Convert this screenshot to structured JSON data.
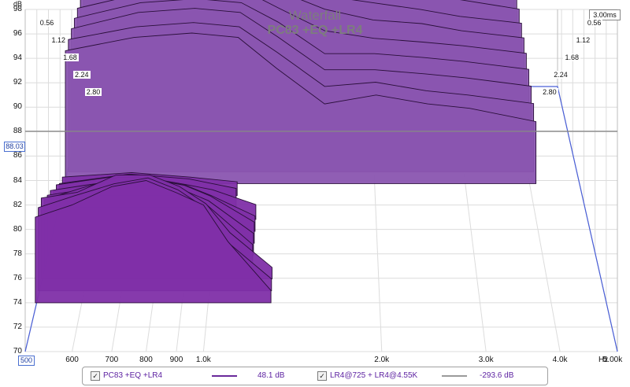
{
  "chart_data": {
    "type": "waterfall",
    "title": "Waterfall",
    "subtitle": "PC83 +EQ +LR4",
    "ylabel": "dB",
    "xlabel": "Hz",
    "ylim": [
      70,
      98
    ],
    "xlim": [
      500,
      5000
    ],
    "x_scale": "log",
    "y_ticks": [
      "98",
      "96",
      "94",
      "92",
      "90",
      "88",
      "86",
      "84",
      "82",
      "80",
      "78",
      "76",
      "74",
      "72",
      "70"
    ],
    "x_ticks": [
      {
        "label": "500",
        "hz": 500
      },
      {
        "label": "600",
        "hz": 600
      },
      {
        "label": "700",
        "hz": 700
      },
      {
        "label": "800",
        "hz": 800
      },
      {
        "label": "900",
        "hz": 900
      },
      {
        "label": "1.0k",
        "hz": 1000
      },
      {
        "label": "2.0k",
        "hz": 2000
      },
      {
        "label": "3.0k",
        "hz": 3000
      },
      {
        "label": "4.0k",
        "hz": 4000
      },
      {
        "label": "5.00k",
        "hz": 5000
      }
    ],
    "time_axis_label": "ms",
    "time_ticks": [
      "0.56",
      "1.12",
      "1.68",
      "2.24",
      "2.80"
    ],
    "time_max": "3.00ms",
    "cursor_db": "88.03",
    "cursor_hz": "500",
    "grid": true,
    "colors": {
      "fill": "#7f2fa8",
      "fill_back": "#8a55b0",
      "edge": "#2a0f3a",
      "grid": "#dcdcdc",
      "floor_frame": "#4a5fd8",
      "cursor": "#888888"
    },
    "slice_count": 20,
    "slices": [
      {
        "time_ms": 0.0,
        "points": [
          [
            520,
            81
          ],
          [
            600,
            82
          ],
          [
            700,
            83.5
          ],
          [
            800,
            84
          ],
          [
            900,
            83
          ],
          [
            1000,
            82
          ],
          [
            1100,
            79
          ],
          [
            1300,
            75
          ]
        ]
      },
      {
        "time_ms": 0.15,
        "points": [
          [
            520,
            81
          ],
          [
            600,
            82
          ],
          [
            700,
            83
          ],
          [
            800,
            83.5
          ],
          [
            900,
            82.5
          ],
          [
            1000,
            81
          ],
          [
            1100,
            78
          ],
          [
            1300,
            75
          ]
        ]
      },
      {
        "time_ms": 0.3,
        "points": [
          [
            520,
            81
          ],
          [
            600,
            81.5
          ],
          [
            700,
            83
          ],
          [
            800,
            83
          ],
          [
            900,
            82
          ],
          [
            1000,
            80.5
          ],
          [
            1100,
            78
          ],
          [
            1300,
            75
          ]
        ]
      },
      {
        "time_ms": 0.45,
        "points": [
          [
            520,
            80
          ],
          [
            600,
            81
          ],
          [
            700,
            82
          ],
          [
            800,
            82
          ],
          [
            900,
            81
          ],
          [
            1000,
            79.5
          ],
          [
            1200,
            76
          ]
        ]
      },
      {
        "time_ms": 0.6,
        "points": [
          [
            520,
            79.5
          ],
          [
            600,
            80
          ],
          [
            700,
            81
          ],
          [
            800,
            81
          ],
          [
            900,
            80
          ],
          [
            1000,
            79
          ],
          [
            1200,
            76
          ]
        ]
      },
      {
        "time_ms": 0.75,
        "points": [
          [
            520,
            79
          ],
          [
            600,
            79.5
          ],
          [
            700,
            80
          ],
          [
            800,
            80
          ],
          [
            900,
            79.5
          ],
          [
            1000,
            78.5
          ],
          [
            1200,
            76
          ]
        ]
      },
      {
        "time_ms": 0.9,
        "points": [
          [
            520,
            78
          ],
          [
            600,
            78.5
          ],
          [
            700,
            79
          ],
          [
            800,
            79
          ],
          [
            900,
            78.5
          ],
          [
            1000,
            77.5
          ],
          [
            1200,
            75.5
          ]
        ]
      },
      {
        "time_ms": 1.05,
        "points": [
          [
            520,
            77.5
          ],
          [
            600,
            78
          ],
          [
            700,
            78.5
          ],
          [
            800,
            78
          ],
          [
            900,
            77.5
          ],
          [
            1000,
            77
          ],
          [
            1200,
            75.5
          ]
        ]
      },
      {
        "time_ms": 1.2,
        "points": [
          [
            520,
            76.5
          ],
          [
            700,
            77.5
          ],
          [
            900,
            77
          ],
          [
            1100,
            76
          ]
        ]
      },
      {
        "time_ms": 1.35,
        "points": [
          [
            520,
            76
          ],
          [
            700,
            76.5
          ],
          [
            900,
            76
          ],
          [
            1100,
            75.5
          ]
        ]
      },
      {
        "time_ms": 1.5,
        "points": [
          [
            520,
            89
          ],
          [
            700,
            90.5
          ],
          [
            900,
            91
          ],
          [
            1100,
            90.5
          ],
          [
            1300,
            87
          ],
          [
            1600,
            83
          ],
          [
            2000,
            84
          ],
          [
            2500,
            83
          ],
          [
            3000,
            82.5
          ],
          [
            4000,
            81
          ]
        ]
      },
      {
        "time_ms": 1.65,
        "points": [
          [
            520,
            89.5
          ],
          [
            700,
            91
          ],
          [
            900,
            91.5
          ],
          [
            1100,
            91
          ],
          [
            1300,
            88
          ],
          [
            1600,
            84
          ],
          [
            2000,
            84.5
          ],
          [
            2500,
            83.5
          ],
          [
            3000,
            83
          ],
          [
            4000,
            82
          ]
        ]
      },
      {
        "time_ms": 1.8,
        "points": [
          [
            520,
            90
          ],
          [
            700,
            92
          ],
          [
            900,
            92.5
          ],
          [
            1100,
            92
          ],
          [
            1300,
            89
          ],
          [
            1600,
            85
          ],
          [
            2000,
            85
          ],
          [
            2500,
            84.5
          ],
          [
            3000,
            84
          ],
          [
            4000,
            83
          ]
        ]
      },
      {
        "time_ms": 1.95,
        "points": [
          [
            520,
            90.5
          ],
          [
            700,
            92.5
          ],
          [
            900,
            93
          ],
          [
            1100,
            92.5
          ],
          [
            1300,
            90
          ],
          [
            1600,
            86
          ],
          [
            2000,
            86
          ],
          [
            2500,
            85.5
          ],
          [
            3000,
            85
          ],
          [
            4000,
            84
          ]
        ]
      },
      {
        "time_ms": 2.1,
        "points": [
          [
            520,
            91
          ],
          [
            700,
            93
          ],
          [
            900,
            93.5
          ],
          [
            1100,
            93.5
          ],
          [
            1300,
            91
          ],
          [
            1600,
            88
          ],
          [
            2000,
            87
          ],
          [
            2500,
            86.5
          ],
          [
            3000,
            86
          ],
          [
            4000,
            85
          ]
        ]
      },
      {
        "time_ms": 2.25,
        "points": [
          [
            520,
            91.5
          ],
          [
            700,
            93.5
          ],
          [
            900,
            94.5
          ],
          [
            1100,
            94.5
          ],
          [
            1300,
            92.5
          ],
          [
            1600,
            90
          ],
          [
            2000,
            88.5
          ],
          [
            2500,
            88
          ],
          [
            3000,
            87
          ],
          [
            4000,
            86
          ]
        ]
      },
      {
        "time_ms": 2.4,
        "points": [
          [
            520,
            92
          ],
          [
            700,
            94
          ],
          [
            900,
            95
          ],
          [
            1100,
            95
          ],
          [
            1300,
            93.5
          ],
          [
            1600,
            91
          ],
          [
            2000,
            90
          ],
          [
            2500,
            89
          ],
          [
            3000,
            88
          ],
          [
            4000,
            87
          ]
        ]
      },
      {
        "time_ms": 2.55,
        "points": [
          [
            520,
            92.5
          ],
          [
            700,
            94.5
          ],
          [
            900,
            95.5
          ],
          [
            1100,
            95.5
          ],
          [
            1300,
            94.5
          ],
          [
            1600,
            92.5
          ],
          [
            2000,
            91.5
          ],
          [
            2500,
            90.5
          ],
          [
            3000,
            89.5
          ],
          [
            4000,
            88
          ]
        ]
      },
      {
        "time_ms": 2.7,
        "points": [
          [
            520,
            93
          ],
          [
            700,
            95
          ],
          [
            900,
            96
          ],
          [
            1100,
            96
          ],
          [
            1300,
            95
          ],
          [
            1600,
            93.5
          ],
          [
            2000,
            92.5
          ],
          [
            2500,
            91.5
          ],
          [
            3000,
            90.5
          ],
          [
            4000,
            89
          ]
        ]
      },
      {
        "time_ms": 2.85,
        "points": [
          [
            520,
            93.5
          ],
          [
            700,
            95.5
          ],
          [
            900,
            96.3
          ],
          [
            1100,
            96.3
          ],
          [
            1300,
            95.5
          ],
          [
            1600,
            94.5
          ],
          [
            2000,
            93.5
          ],
          [
            2500,
            92.5
          ],
          [
            3000,
            91.5
          ],
          [
            4000,
            90
          ]
        ]
      }
    ],
    "legend": [
      {
        "checked": true,
        "label": "PC83 +EQ +LR4",
        "line_color": "#6a2a9a",
        "value": "48.1 dB"
      },
      {
        "checked": true,
        "label": "LR4@725 + LR4@4.55K",
        "line_color": "#9a9a9a",
        "value": "-293.6 dB"
      }
    ]
  }
}
